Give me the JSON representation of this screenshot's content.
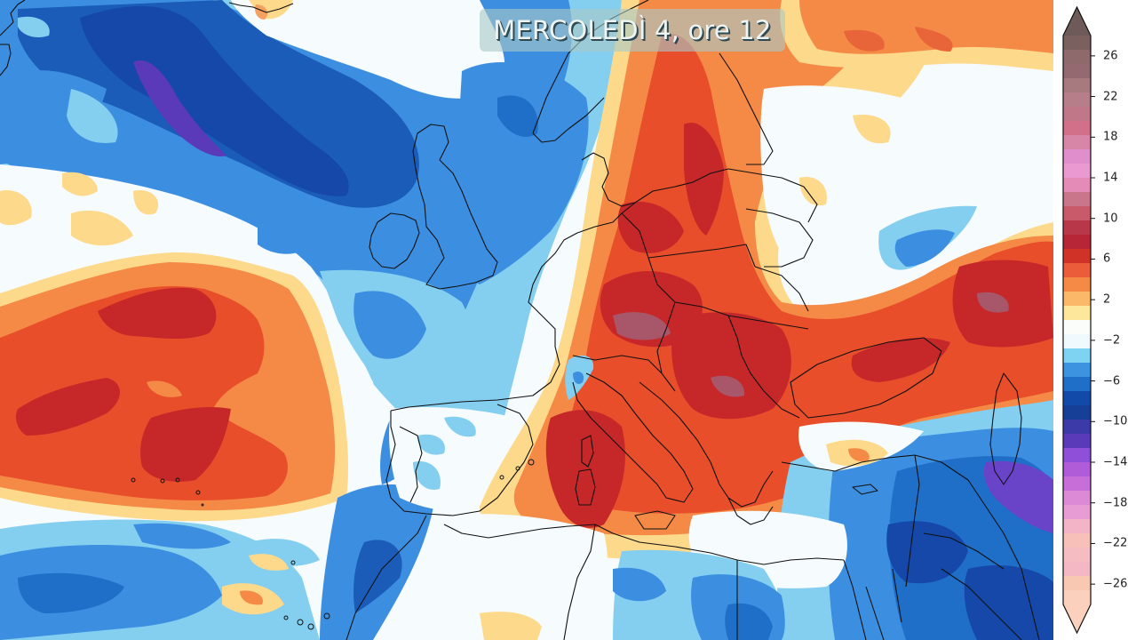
{
  "map": {
    "title": "MERCOLEDÌ 4, ore 12",
    "region": "Europe, North Atlantic, North Africa, Middle East",
    "field_description": "temperature anomaly color-filled contours"
  },
  "colorbar": {
    "tick_labels": [
      "26",
      "22",
      "18",
      "14",
      "10",
      "6",
      "2",
      "−2",
      "−6",
      "−10",
      "−14",
      "−18",
      "−22",
      "−26"
    ],
    "tick_values": [
      26,
      22,
      18,
      14,
      10,
      6,
      2,
      -2,
      -6,
      -10,
      -14,
      -18,
      -22,
      -26
    ],
    "min": -28,
    "max": 28,
    "step": 2,
    "extend": "both",
    "colors_top_to_bottom": [
      "#7a615f",
      "#8f6a6c",
      "#946a70",
      "#a77a80",
      "#b57e88",
      "#c07888",
      "#d2708a",
      "#d886a8",
      "#e08fcc",
      "#ea9ad0",
      "#e58bb7",
      "#c9768b",
      "#c95a6a",
      "#b8384a",
      "#b62636",
      "#d13228",
      "#ea5c3a",
      "#f48a46",
      "#fbb868",
      "#fde79a",
      "#fbfdfb",
      "#f0f9fd",
      "#7ed2f2",
      "#3c93e0",
      "#1f6fc8",
      "#114aa8",
      "#163f98",
      "#3c3aa8",
      "#5a3ab8",
      "#8f4fd8",
      "#b05cd8",
      "#c76ed8",
      "#dc8ad6",
      "#e79cd4",
      "#f4b4c8",
      "#f7c0b8",
      "#f5bcc2",
      "#f4b8c4",
      "#f9c8b2",
      "#fbd0bc"
    ],
    "over_color": "#6e5a58",
    "under_color": "#fbd0bc"
  },
  "legend_colors": {
    "deep_warm": "#b8202e",
    "warm": "#e44d2e",
    "mild_warm": "#f48a46",
    "slight_warm": "#fdd98c",
    "neutral": "#f6fbfd",
    "slight_cool": "#84d0f0",
    "cool": "#3c8fe0",
    "cold": "#1a5cb8",
    "very_cold": "#6240c0"
  }
}
